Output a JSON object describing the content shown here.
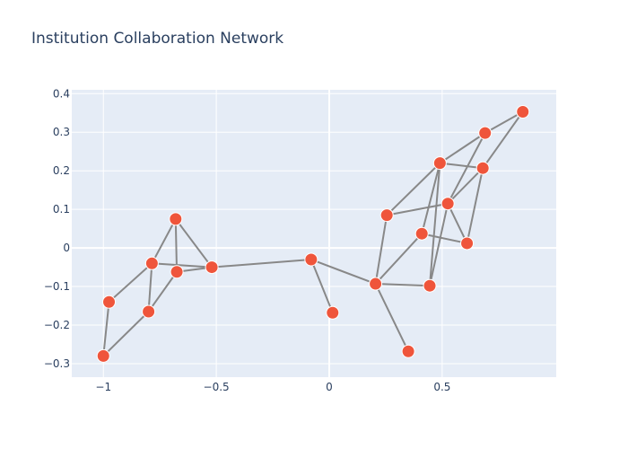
{
  "chart_data": {
    "type": "scatter",
    "title": "Institution Collaboration Network",
    "xlabel": "",
    "ylabel": "",
    "xlim": [
      -1.14,
      1.005
    ],
    "ylim": [
      -0.335,
      0.41
    ],
    "xticks": [
      -1,
      -0.5,
      0,
      0.5
    ],
    "xtick_labels": [
      "−1",
      "−0.5",
      "0",
      "0.5"
    ],
    "yticks": [
      -0.3,
      -0.2,
      -0.1,
      0,
      0.1,
      0.2,
      0.3,
      0.4
    ],
    "ytick_labels": [
      "−0.3",
      "−0.2",
      "−0.1",
      "0",
      "0.1",
      "0.2",
      "0.3",
      "0.4"
    ],
    "grid": true,
    "legend": false,
    "colors": {
      "plot_bg": "#e5ecf6",
      "grid": "#ffffff",
      "edge": "#888888",
      "node": "#ef553b",
      "node_stroke": "#ffffff"
    },
    "nodes": [
      {
        "x": -1.0,
        "y": -0.28
      },
      {
        "x": -0.975,
        "y": -0.14
      },
      {
        "x": -0.8,
        "y": -0.165
      },
      {
        "x": -0.785,
        "y": -0.04
      },
      {
        "x": -0.68,
        "y": 0.075
      },
      {
        "x": -0.675,
        "y": -0.062
      },
      {
        "x": -0.52,
        "y": -0.05
      },
      {
        "x": -0.08,
        "y": -0.03
      },
      {
        "x": 0.015,
        "y": -0.168
      },
      {
        "x": 0.205,
        "y": -0.093
      },
      {
        "x": 0.255,
        "y": 0.085
      },
      {
        "x": 0.35,
        "y": -0.268
      },
      {
        "x": 0.41,
        "y": 0.037
      },
      {
        "x": 0.445,
        "y": -0.098
      },
      {
        "x": 0.49,
        "y": 0.22
      },
      {
        "x": 0.525,
        "y": 0.115
      },
      {
        "x": 0.61,
        "y": 0.012
      },
      {
        "x": 0.68,
        "y": 0.207
      },
      {
        "x": 0.69,
        "y": 0.298
      },
      {
        "x": 0.857,
        "y": 0.353
      }
    ],
    "edges": [
      [
        0,
        1
      ],
      [
        0,
        2
      ],
      [
        1,
        3
      ],
      [
        2,
        3
      ],
      [
        2,
        5
      ],
      [
        3,
        4
      ],
      [
        3,
        6
      ],
      [
        4,
        5
      ],
      [
        4,
        6
      ],
      [
        5,
        6
      ],
      [
        6,
        7
      ],
      [
        7,
        8
      ],
      [
        7,
        9
      ],
      [
        9,
        10
      ],
      [
        9,
        11
      ],
      [
        9,
        12
      ],
      [
        9,
        13
      ],
      [
        10,
        14
      ],
      [
        10,
        15
      ],
      [
        12,
        14
      ],
      [
        12,
        16
      ],
      [
        13,
        14
      ],
      [
        13,
        15
      ],
      [
        14,
        17
      ],
      [
        14,
        18
      ],
      [
        15,
        16
      ],
      [
        15,
        18
      ],
      [
        15,
        17
      ],
      [
        16,
        17
      ],
      [
        17,
        19
      ],
      [
        18,
        19
      ]
    ]
  }
}
